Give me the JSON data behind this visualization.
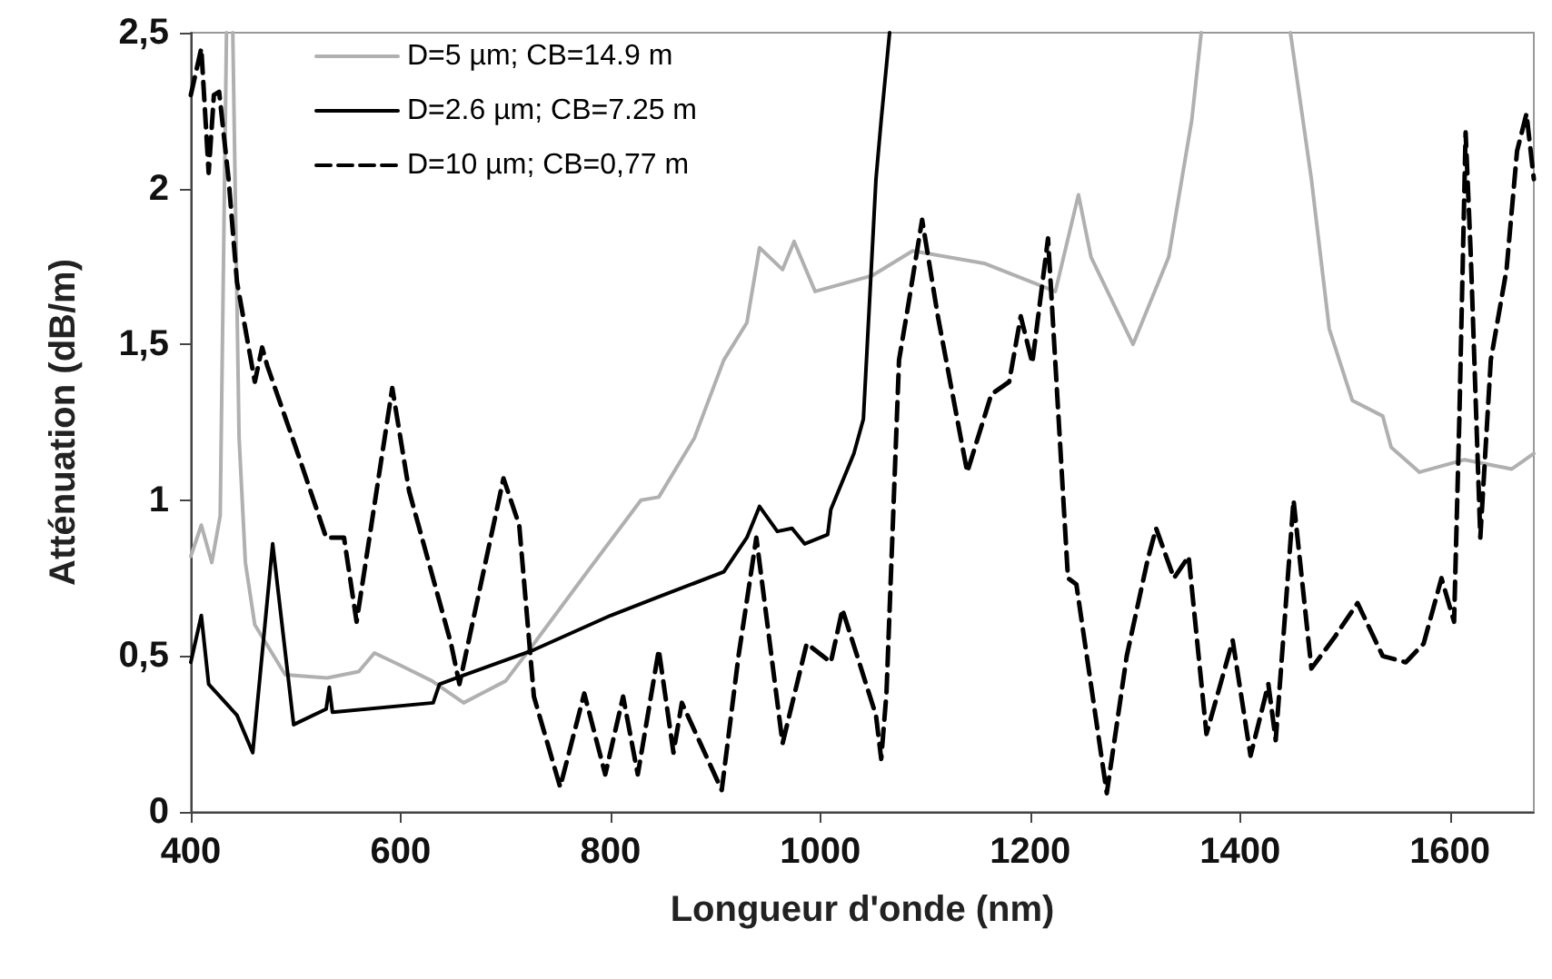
{
  "chart_data": {
    "type": "line",
    "xlabel": "Longueur d'onde (nm)",
    "ylabel": "Atténuation (dB/m)",
    "xlim": [
      400,
      1680
    ],
    "xticks": [
      400,
      600,
      800,
      1000,
      1200,
      1400,
      1600
    ],
    "ylim": [
      0,
      2.5
    ],
    "yticks": [
      0,
      {
        "value": 0.5,
        "label": "0,5"
      },
      1,
      {
        "value": 1.5,
        "label": "1,5"
      },
      2,
      {
        "value": 2.5,
        "label": "2,5"
      }
    ],
    "grid": false,
    "legend": "top left",
    "marker": "none",
    "series": [
      {
        "name": "D=5 µm; CB=14.9 m",
        "color": "#b0b0b0",
        "line_style": "solid",
        "x": [
          400,
          410,
          420,
          428,
          434,
          436,
          440,
          446,
          452,
          461,
          490,
          530,
          560,
          575,
          600,
          630,
          660,
          700,
          727,
          780,
          829,
          846,
          880,
          908,
          930,
          942,
          964,
          975,
          995,
          1049,
          1088,
          1156,
          1224,
          1246,
          1258,
          1298,
          1332,
          1354,
          1363,
          1400,
          1448,
          1468,
          1485,
          1507,
          1536,
          1544,
          1571,
          1614,
          1659,
          1680
        ],
        "values": [
          0.82,
          0.92,
          0.8,
          0.95,
          2.5,
          null,
          2.5,
          1.2,
          0.8,
          0.6,
          0.44,
          0.43,
          0.45,
          0.51,
          0.47,
          0.42,
          0.35,
          0.42,
          0.54,
          0.78,
          1.0,
          1.01,
          1.2,
          1.45,
          1.57,
          1.81,
          1.74,
          1.83,
          1.67,
          1.72,
          1.8,
          1.76,
          1.67,
          1.98,
          1.78,
          1.5,
          1.78,
          2.22,
          2.5,
          null,
          2.5,
          2.03,
          1.55,
          1.32,
          1.27,
          1.17,
          1.09,
          1.13,
          1.1,
          1.15
        ]
      },
      {
        "name": "D=2.6 µm; CB=7.25 m",
        "color": "#000000",
        "line_style": "solid",
        "x": [
          400,
          410,
          417,
          444,
          459,
          478,
          498,
          529,
          532,
          535,
          631,
          637,
          727,
          800,
          846,
          908,
          930,
          942,
          959,
          973,
          985,
          1007,
          1010,
          1032,
          1041,
          1053,
          1058,
          1066
        ],
        "values": [
          0.48,
          0.63,
          0.41,
          0.31,
          0.19,
          0.86,
          0.28,
          0.33,
          0.4,
          0.32,
          0.35,
          0.41,
          0.52,
          0.63,
          0.69,
          0.77,
          0.88,
          0.98,
          0.9,
          0.91,
          0.86,
          0.89,
          0.97,
          1.15,
          1.26,
          2.03,
          2.22,
          2.5
        ]
      },
      {
        "name": "D=10 µm; CB=0,77 m",
        "color": "#000000",
        "line_style": "dashed",
        "x": [
          400,
          410,
          417,
          422,
          427,
          436,
          444,
          461,
          468,
          473,
          502,
          529,
          546,
          558,
          592,
          608,
          648,
          656,
          698,
          713,
          727,
          752,
          775,
          795,
          812,
          826,
          846,
          860,
          868,
          906,
          922,
          939,
          964,
          987,
          1010,
          1021,
          1053,
          1058,
          1063,
          1075,
          1083,
          1097,
          1112,
          1140,
          1163,
          1180,
          1191,
          1202,
          1217,
          1236,
          1244,
          1273,
          1292,
          1312,
          1320,
          1337,
          1351,
          1368,
          1393,
          1410,
          1427,
          1434,
          1451,
          1468,
          1490,
          1512,
          1536,
          1558,
          1575,
          1592,
          1604,
          1609,
          1615,
          1620,
          1629,
          1639,
          1654,
          1664,
          1673,
          1680
        ],
        "values": [
          2.3,
          2.45,
          2.05,
          2.3,
          2.31,
          2.03,
          1.7,
          1.38,
          1.49,
          1.43,
          1.15,
          0.88,
          0.88,
          0.61,
          1.36,
          1.03,
          0.54,
          0.41,
          1.07,
          0.92,
          0.37,
          0.08,
          0.38,
          0.12,
          0.37,
          0.12,
          0.52,
          0.19,
          0.35,
          0.07,
          0.5,
          0.88,
          0.22,
          0.54,
          0.48,
          0.65,
          0.31,
          0.17,
          0.38,
          1.45,
          1.61,
          1.9,
          1.59,
          1.09,
          1.34,
          1.38,
          1.59,
          1.44,
          1.84,
          0.75,
          0.73,
          0.06,
          0.5,
          0.81,
          0.91,
          0.75,
          0.82,
          0.25,
          0.55,
          0.18,
          0.41,
          0.23,
          1.0,
          0.46,
          0.56,
          0.67,
          0.5,
          0.48,
          0.54,
          0.75,
          0.61,
          1.26,
          2.18,
          1.78,
          0.88,
          1.45,
          1.74,
          2.12,
          2.24,
          2.03
        ]
      }
    ]
  }
}
